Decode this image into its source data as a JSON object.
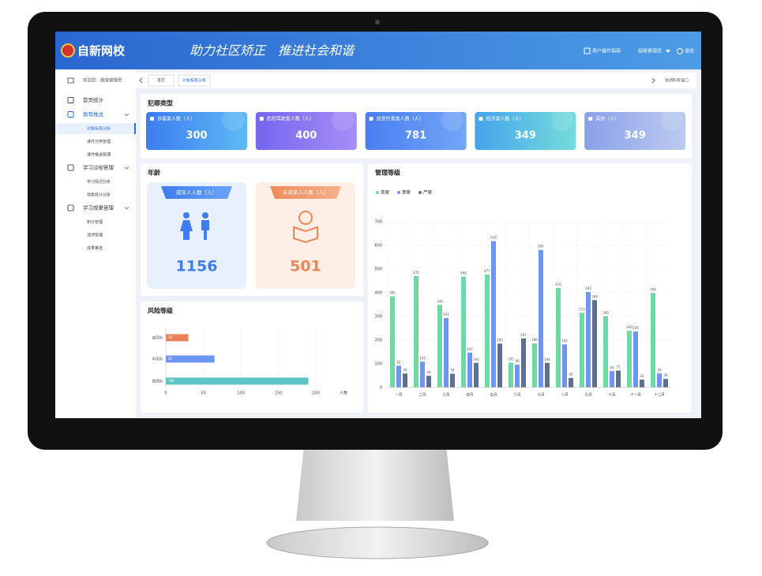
{
  "header": {
    "logo": "自新网校",
    "slogan": "助力社区矫正　推进社会和谐",
    "guide": "用户操作指南",
    "user": "超级管理员",
    "logout": "退出"
  },
  "sidebar": {
    "welcome": "欢迎您：超级管理员",
    "menu": [
      {
        "label": "首页统计"
      },
      {
        "label": "教育推送",
        "children": [
          "对象标签分析",
          "课件分类管理",
          "课件推送管理"
        ]
      },
      {
        "label": "学习过程管理",
        "children": [
          "学习情况分析",
          "观看统计分析"
        ]
      },
      {
        "label": "学习成果管理",
        "children": [
          "积分管理",
          "测评管理",
          "成果推送"
        ]
      }
    ]
  },
  "tabs": {
    "items": [
      "首页",
      "对象标签分析"
    ],
    "close": "关闭所有窗口"
  },
  "crime_types": {
    "title": "犯罪类型",
    "cards": [
      {
        "label": "涉毒类人数（人）",
        "value": 300
      },
      {
        "label": "危险驾驶类人数（人）",
        "value": 400
      },
      {
        "label": "故意伤害类人数（人）",
        "value": 781
      },
      {
        "label": "经济类人数（人）",
        "value": 349
      },
      {
        "label": "其他（人）",
        "value": 349
      }
    ]
  },
  "age": {
    "title": "年龄",
    "cards": [
      {
        "label": "成年人人数（人）",
        "value": 1156
      },
      {
        "label": "未成年人人数（人）",
        "value": 501
      }
    ]
  },
  "risk_chart": {
    "type": "bar",
    "orientation": "horizontal",
    "title": "风险等级",
    "categories": [
      "高风险",
      "中风险",
      "低风险"
    ],
    "values": [
      30,
      65,
      190
    ],
    "colors": [
      "#e8825a",
      "#6e96f0",
      "#5cc4c4"
    ],
    "xlim": [
      0,
      200
    ],
    "xticks": [
      0,
      50,
      100,
      150,
      200
    ],
    "x_label": "人数",
    "grid": true
  },
  "management_chart": {
    "type": "bar",
    "title": "管理等级",
    "categories": [
      "一月",
      "二月",
      "三月",
      "四月",
      "五月",
      "六月",
      "七月",
      "八月",
      "九月",
      "十月",
      "十一月",
      "十二月"
    ],
    "series": [
      {
        "name": "宽管",
        "color": "#6fd9a6",
        "values": [
          385,
          470,
          349,
          468,
          477,
          105,
          186,
          420,
          315,
          300,
          240,
          399
        ]
      },
      {
        "name": "普管",
        "color": "#6e96f0",
        "values": [
          92,
          109,
          293,
          147,
          618,
          96,
          581,
          182,
          403,
          69,
          236,
          59
        ]
      },
      {
        "name": "严管",
        "color": "#5f6f8f",
        "values": [
          59,
          49,
          58,
          104,
          185,
          207,
          104,
          40,
          369,
          71,
          33,
          36
        ]
      }
    ],
    "ylim": [
      0,
      700
    ],
    "yticks": [
      0,
      100,
      200,
      300,
      400,
      500,
      600,
      700
    ],
    "grid": true,
    "legend": "top-left"
  }
}
